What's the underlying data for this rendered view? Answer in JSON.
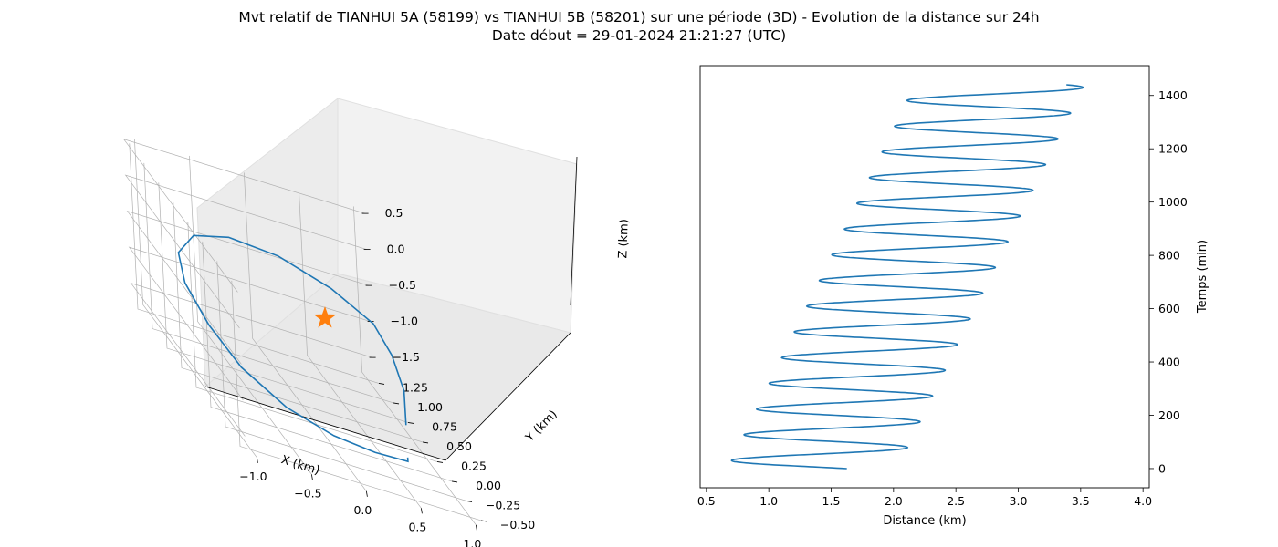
{
  "figure": {
    "title_line1": "Mvt relatif de TIANHUI 5A (58199) vs TIANHUI 5B (58201) sur une période (3D) - Evolution de la distance sur 24h",
    "title_line2": "Date début = 29-01-2024 21:21:27 (UTC)"
  },
  "colors": {
    "series": "#1f77b4",
    "marker": "#ff7f0e",
    "pane": "#f2f2f2",
    "grid": "#b0b0b0"
  },
  "chart_data": [
    {
      "type": "line3d",
      "xlabel": "X (km)",
      "ylabel": "Y (km)",
      "zlabel": "Z (km)",
      "x_ticks": [
        "−1.0",
        "−0.5",
        "0.0",
        "0.5",
        "1.0"
      ],
      "y_ticks": [
        "−0.50",
        "−0.25",
        "0.00",
        "0.25",
        "0.50",
        "0.75",
        "1.00",
        "1.25"
      ],
      "z_ticks": [
        "0.5",
        "0.0",
        "−0.5",
        "−1.0",
        "−1.5"
      ],
      "xlim": [
        -1.1,
        1.1
      ],
      "ylim": [
        -0.6,
        1.35
      ],
      "zlim": [
        -1.75,
        0.55
      ],
      "grid": true,
      "series": [
        {
          "values": [
            [
              0.55,
              -0.3,
              -0.9
            ],
            [
              0.8,
              0.2,
              -0.85
            ],
            [
              0.88,
              0.55,
              -0.7
            ],
            [
              0.85,
              0.8,
              -0.55
            ],
            [
              0.6,
              1.05,
              -0.45
            ],
            [
              0.2,
              1.2,
              -0.35
            ],
            [
              -0.25,
              1.2,
              -0.3
            ],
            [
              -0.65,
              1.05,
              -0.3
            ],
            [
              -0.95,
              0.75,
              -0.35
            ],
            [
              -1.08,
              0.4,
              -0.45
            ],
            [
              -1.08,
              0.0,
              -0.6
            ],
            [
              -0.95,
              -0.3,
              -0.8
            ],
            [
              -0.65,
              -0.5,
              -1.0
            ],
            [
              -0.25,
              -0.55,
              -1.15
            ],
            [
              0.15,
              -0.5,
              -1.25
            ],
            [
              0.5,
              -0.4,
              -1.32
            ],
            [
              0.55,
              -0.3,
              -1.35
            ]
          ]
        }
      ],
      "marker": {
        "x": 0.0,
        "y": 0.0,
        "z": 0.0,
        "shape": "star"
      }
    },
    {
      "type": "line",
      "xlabel": "Distance (km)",
      "ylabel": "Temps (min)",
      "x_ticks": [
        "0.5",
        "1.0",
        "1.5",
        "2.0",
        "2.5",
        "3.0",
        "3.5",
        "4.0"
      ],
      "y_ticks": [
        "0",
        "200",
        "400",
        "600",
        "800",
        "1000",
        "1200",
        "1400"
      ],
      "xlim": [
        0.45,
        4.05
      ],
      "ylim": [
        -72,
        1512
      ],
      "grid": false,
      "series": [
        {
          "mean_start": 1.35,
          "mean_end": 2.85,
          "amplitude": 0.68,
          "period_min": 96.5,
          "phase_sin": -0.63,
          "phase_cos": 0.28,
          "t_start": 0,
          "t_end": 1440
        }
      ]
    }
  ]
}
